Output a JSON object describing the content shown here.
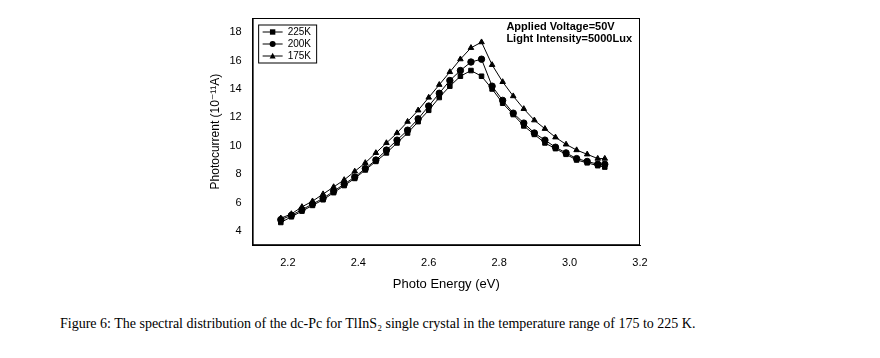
{
  "chart_data": {
    "type": "line",
    "caption": "Figure 6: The spectral distribution of the dc-Pc for TlInS₂ single crystal in the temperature range of 175 to 225 K.",
    "x_label": "Photo Energy (eV)",
    "y_label": "Photocurrent (10⁻¹¹A)",
    "annotations": [
      "Applied Voltage=50V",
      "Light Intensity=5000Lux"
    ],
    "x": [
      2.18,
      2.21,
      2.24,
      2.27,
      2.3,
      2.33,
      2.36,
      2.39,
      2.42,
      2.45,
      2.48,
      2.51,
      2.54,
      2.57,
      2.6,
      2.63,
      2.66,
      2.69,
      2.72,
      2.75,
      2.78,
      2.81,
      2.84,
      2.87,
      2.9,
      2.93,
      2.96,
      2.99,
      3.02,
      3.05,
      3.08,
      3.1
    ],
    "series": [
      {
        "name": "225K",
        "color": "#000000",
        "marker": "square",
        "values": [
          4.6,
          5.0,
          5.4,
          5.8,
          6.2,
          6.7,
          7.2,
          7.7,
          8.3,
          8.9,
          9.5,
          10.2,
          10.9,
          11.7,
          12.5,
          13.4,
          14.2,
          14.9,
          15.3,
          14.9,
          14.0,
          13.0,
          12.2,
          11.4,
          10.8,
          10.2,
          9.8,
          9.4,
          9.0,
          8.8,
          8.6,
          8.5
        ]
      },
      {
        "name": "200K",
        "color": "#000000",
        "marker": "circle",
        "values": [
          4.8,
          5.1,
          5.5,
          5.9,
          6.3,
          6.8,
          7.3,
          7.8,
          8.4,
          9.0,
          9.7,
          10.4,
          11.1,
          11.9,
          12.8,
          13.7,
          14.6,
          15.3,
          15.9,
          16.1,
          14.2,
          13.2,
          12.3,
          11.6,
          10.9,
          10.4,
          9.9,
          9.5,
          9.1,
          8.9,
          8.7,
          8.7
        ]
      },
      {
        "name": "175K",
        "color": "#000000",
        "marker": "triangle",
        "values": [
          4.9,
          5.2,
          5.7,
          6.1,
          6.6,
          7.1,
          7.6,
          8.2,
          8.8,
          9.5,
          10.2,
          10.9,
          11.7,
          12.5,
          13.4,
          14.3,
          15.2,
          16.1,
          16.9,
          17.3,
          15.7,
          14.5,
          13.5,
          12.6,
          11.8,
          11.2,
          10.6,
          10.1,
          9.7,
          9.4,
          9.1,
          9.1
        ]
      }
    ],
    "xlim": [
      2.1,
      3.2
    ],
    "xticks": [
      2.2,
      2.4,
      2.6,
      2.8,
      {
        "value": 3,
        "label": "3.0"
      },
      3.2
    ],
    "ylim": [
      3,
      19
    ],
    "yticks": [
      4,
      6,
      8,
      10,
      12,
      14,
      16,
      18
    ],
    "grid": false,
    "legend": "upper left"
  }
}
